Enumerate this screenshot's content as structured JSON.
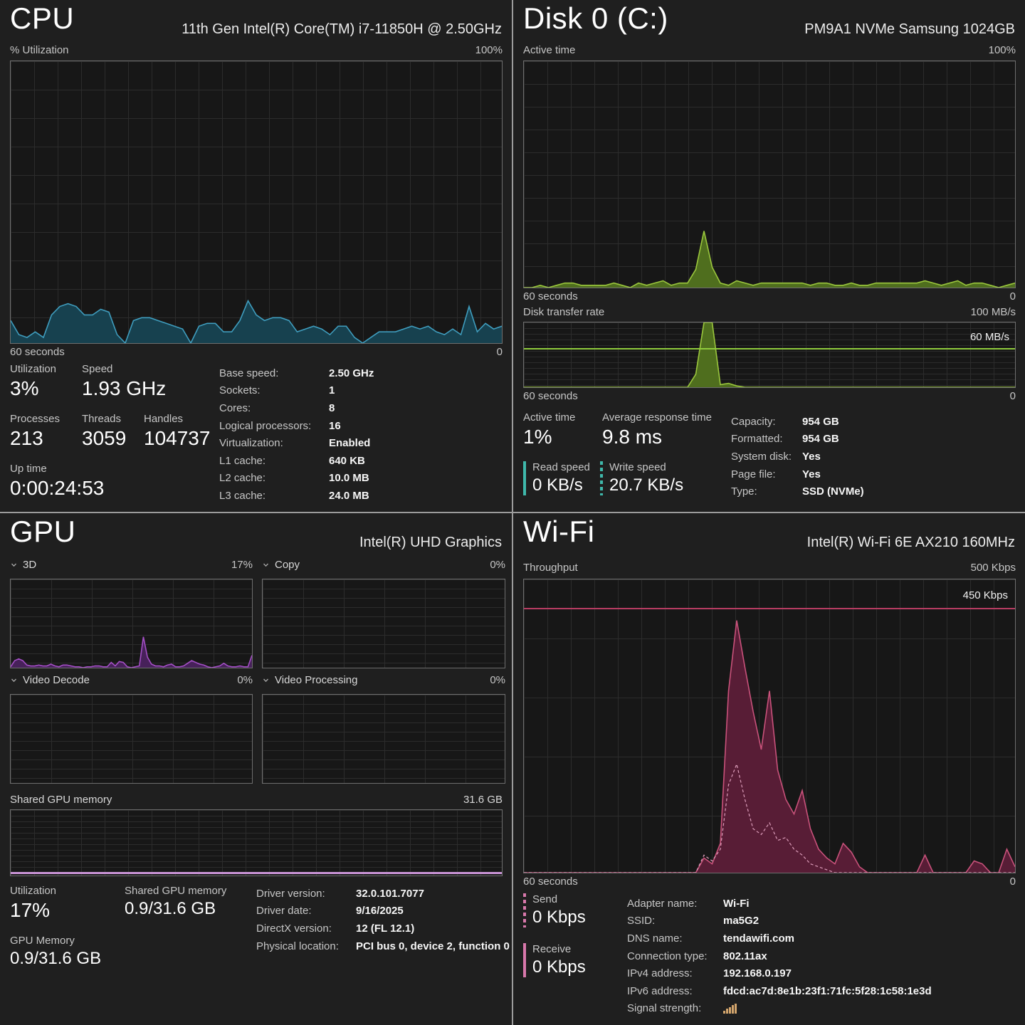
{
  "cpu": {
    "title": "CPU",
    "subtitle": "11th Gen Intel(R) Core(TM) i7-11850H @ 2.50GHz",
    "graph_label": "% Utilization",
    "graph_max": "100%",
    "x_left": "60 seconds",
    "x_right": "0",
    "stats": [
      {
        "label": "Utilization",
        "value": "3%"
      },
      {
        "label": "Speed",
        "value": "1.93 GHz"
      },
      {
        "label": "Processes",
        "value": "213"
      },
      {
        "label": "Threads",
        "value": "3059"
      },
      {
        "label": "Handles",
        "value": "104737"
      },
      {
        "label": "Up time",
        "value": "0:00:24:53"
      }
    ],
    "specs": [
      {
        "label": "Base speed:",
        "value": "2.50 GHz"
      },
      {
        "label": "Sockets:",
        "value": "1"
      },
      {
        "label": "Cores:",
        "value": "8"
      },
      {
        "label": "Logical processors:",
        "value": "16"
      },
      {
        "label": "Virtualization:",
        "value": "Enabled"
      },
      {
        "label": "L1 cache:",
        "value": "640 KB"
      },
      {
        "label": "L2 cache:",
        "value": "10.0 MB"
      },
      {
        "label": "L3 cache:",
        "value": "24.0 MB"
      }
    ]
  },
  "disk": {
    "title": "Disk 0 (C:)",
    "subtitle": "PM9A1 NVMe Samsung 1024GB",
    "graph1_label": "Active time",
    "graph1_max": "100%",
    "graph2_label": "Disk transfer rate",
    "graph2_max": "100 MB/s",
    "graph2_ref_label": "60 MB/s",
    "x_left": "60 seconds",
    "x_right": "0",
    "stats": [
      {
        "label": "Active time",
        "value": "1%"
      },
      {
        "label": "Average response time",
        "value": "9.8 ms"
      },
      {
        "label": "Read speed",
        "value": "0 KB/s"
      },
      {
        "label": "Write speed",
        "value": "20.7 KB/s"
      }
    ],
    "specs": [
      {
        "label": "Capacity:",
        "value": "954 GB"
      },
      {
        "label": "Formatted:",
        "value": "954 GB"
      },
      {
        "label": "System disk:",
        "value": "Yes"
      },
      {
        "label": "Page file:",
        "value": "Yes"
      },
      {
        "label": "Type:",
        "value": "SSD (NVMe)"
      }
    ]
  },
  "gpu": {
    "title": "GPU",
    "subtitle": "Intel(R) UHD Graphics",
    "engines": [
      {
        "name": "3D",
        "value": "17%"
      },
      {
        "name": "Copy",
        "value": "0%"
      },
      {
        "name": "Video Decode",
        "value": "0%"
      },
      {
        "name": "Video Processing",
        "value": "0%"
      }
    ],
    "shared_label": "Shared GPU memory",
    "shared_max": "31.6 GB",
    "stats": [
      {
        "label": "Utilization",
        "value": "17%"
      },
      {
        "label": "Shared GPU memory",
        "value": "0.9/31.6 GB"
      },
      {
        "label": "GPU Memory",
        "value": "0.9/31.6 GB"
      }
    ],
    "specs": [
      {
        "label": "Driver version:",
        "value": "32.0.101.7077"
      },
      {
        "label": "Driver date:",
        "value": "9/16/2025"
      },
      {
        "label": "DirectX version:",
        "value": "12 (FL 12.1)"
      },
      {
        "label": "Physical location:",
        "value": "PCI bus 0, device 2, function 0"
      }
    ]
  },
  "wifi": {
    "title": "Wi-Fi",
    "subtitle": "Intel(R) Wi-Fi 6E AX210 160MHz",
    "graph_label": "Throughput",
    "graph_max": "500 Kbps",
    "graph_ref_label": "450 Kbps",
    "x_left": "60 seconds",
    "x_right": "0",
    "stats": [
      {
        "label": "Send",
        "value": "0 Kbps"
      },
      {
        "label": "Receive",
        "value": "0 Kbps"
      }
    ],
    "specs": [
      {
        "label": "Adapter name:",
        "value": "Wi-Fi"
      },
      {
        "label": "SSID:",
        "value": "ma5G2"
      },
      {
        "label": "DNS name:",
        "value": "tendawifi.com"
      },
      {
        "label": "Connection type:",
        "value": "802.11ax"
      },
      {
        "label": "IPv4 address:",
        "value": "192.168.0.197"
      },
      {
        "label": "IPv6 address:",
        "value": "fdcd:ac7d:8e1b:23f1:71fc:5f28:1c58:1e3d"
      },
      {
        "label": "Signal strength:",
        "value": ""
      }
    ]
  },
  "icons": {
    "chevron": "chevron-down-icon",
    "signal_strength": "signal-bars-icon"
  },
  "colors": {
    "background": "#1f1f1f",
    "divider": "#9c9c9c",
    "cpu_line": "#3f9dbe",
    "cpu_fill": "#17414f",
    "disk_line": "#9bc73d",
    "disk_fill": "#4f6e1e",
    "disk_ref_line": "#8fcb3c",
    "gpu_line": "#a44fc6",
    "gpu_fill": "#47215a",
    "gpu_mem_line": "#c993d6",
    "wifi_line": "#c9527b",
    "wifi_fill": "#581d36",
    "wifi_send_line": "#dc9dba",
    "wifi_ref_line": "#b83d63",
    "read_write_legend": "#3fb8ab",
    "send_receive_legend": "#d878ab",
    "signal_icon": "#d2a46c"
  },
  "graphs": {
    "cpu_util": {
      "series": [
        {
          "values": [
            8,
            3,
            2,
            4,
            2,
            10,
            13,
            14,
            13,
            10,
            10,
            12,
            11,
            3,
            0,
            8,
            9,
            9,
            8,
            7,
            6,
            5,
            0,
            6,
            7,
            7,
            4,
            4,
            8,
            15,
            10,
            8,
            9,
            9,
            8,
            4,
            5,
            6,
            5,
            3,
            6,
            6,
            2,
            0,
            2,
            4,
            4,
            4,
            5,
            6,
            5,
            6,
            4,
            3,
            5,
            3,
            13,
            4,
            7,
            5,
            6
          ],
          "line": "#3f9dbe",
          "fill": "#17414f",
          "width": 1.6
        }
      ]
    },
    "disk_active": {
      "series": [
        {
          "values": [
            0,
            0,
            1,
            0,
            1,
            2,
            2,
            1,
            1,
            1,
            1,
            2,
            1,
            0,
            2,
            1,
            2,
            3,
            1,
            2,
            2,
            8,
            25,
            9,
            2,
            1,
            3,
            2,
            1,
            2,
            2,
            2,
            2,
            2,
            2,
            1,
            2,
            2,
            1,
            1,
            2,
            1,
            1,
            2,
            2,
            2,
            2,
            2,
            2,
            3,
            2,
            1,
            2,
            3,
            1,
            2,
            2,
            1,
            0,
            1,
            2
          ],
          "line": "#9bc73d",
          "fill": "#4f6e1e",
          "width": 1.6
        }
      ]
    },
    "disk_rate": {
      "series": [
        {
          "values": [
            0,
            0,
            0,
            0,
            0,
            0,
            0,
            0,
            0,
            0,
            0,
            0,
            0,
            0,
            0,
            0,
            0,
            0,
            0,
            0,
            0,
            20,
            100,
            100,
            4,
            6,
            2,
            0,
            0,
            0,
            0,
            0,
            0,
            0,
            0,
            0,
            0,
            0,
            0,
            0,
            0,
            0,
            0,
            0,
            0,
            0,
            0,
            0,
            0,
            0,
            0,
            0,
            0,
            0,
            0,
            0,
            0,
            0,
            0,
            0,
            0
          ],
          "line": "#9bc73d",
          "fill": "#4f6e1e",
          "width": 1.6
        }
      ]
    },
    "gpu_3d": {
      "series": [
        {
          "values": [
            1,
            8,
            10,
            8,
            3,
            2,
            2,
            3,
            2,
            2,
            4,
            2,
            1,
            3,
            3,
            2,
            1,
            1,
            0,
            1,
            1,
            2,
            2,
            1,
            1,
            6,
            2,
            7,
            6,
            1,
            0,
            1,
            2,
            35,
            12,
            4,
            2,
            2,
            1,
            3,
            4,
            1,
            1,
            2,
            5,
            8,
            6,
            4,
            3,
            1,
            0,
            1,
            2,
            5,
            2,
            1,
            1,
            2,
            1,
            1,
            14
          ],
          "line": "#a44fc6",
          "fill": "#47215a",
          "width": 1.6
        }
      ]
    },
    "wifi_throughput": {
      "series": [
        {
          "values": [
            0,
            0,
            0,
            0,
            0,
            0,
            0,
            0,
            0,
            0,
            0,
            0,
            0,
            0,
            0,
            0,
            0,
            0,
            0,
            0,
            0,
            0,
            5,
            3,
            10,
            62,
            86,
            70,
            55,
            42,
            62,
            35,
            25,
            20,
            28,
            15,
            8,
            5,
            3,
            10,
            7,
            2,
            0,
            0,
            0,
            0,
            0,
            0,
            0,
            6,
            0,
            0,
            0,
            0,
            0,
            4,
            3,
            0,
            0,
            8,
            2
          ],
          "line": "#c9527b",
          "fill": "#581d36",
          "width": 1.6
        },
        {
          "values": [
            0,
            0,
            0,
            0,
            0,
            0,
            0,
            0,
            0,
            0,
            0,
            0,
            0,
            0,
            0,
            0,
            0,
            0,
            0,
            0,
            0,
            0,
            6,
            4,
            8,
            30,
            37,
            25,
            15,
            13,
            17,
            11,
            12,
            8,
            6,
            3,
            2,
            1,
            0,
            0,
            0,
            0,
            0,
            0,
            0,
            0,
            0,
            0,
            0,
            0,
            0,
            0,
            0,
            0,
            0,
            0,
            0,
            0,
            0,
            0,
            0
          ],
          "line": "#dc9dba",
          "width": 1.2,
          "dash": "4 3"
        }
      ]
    }
  }
}
